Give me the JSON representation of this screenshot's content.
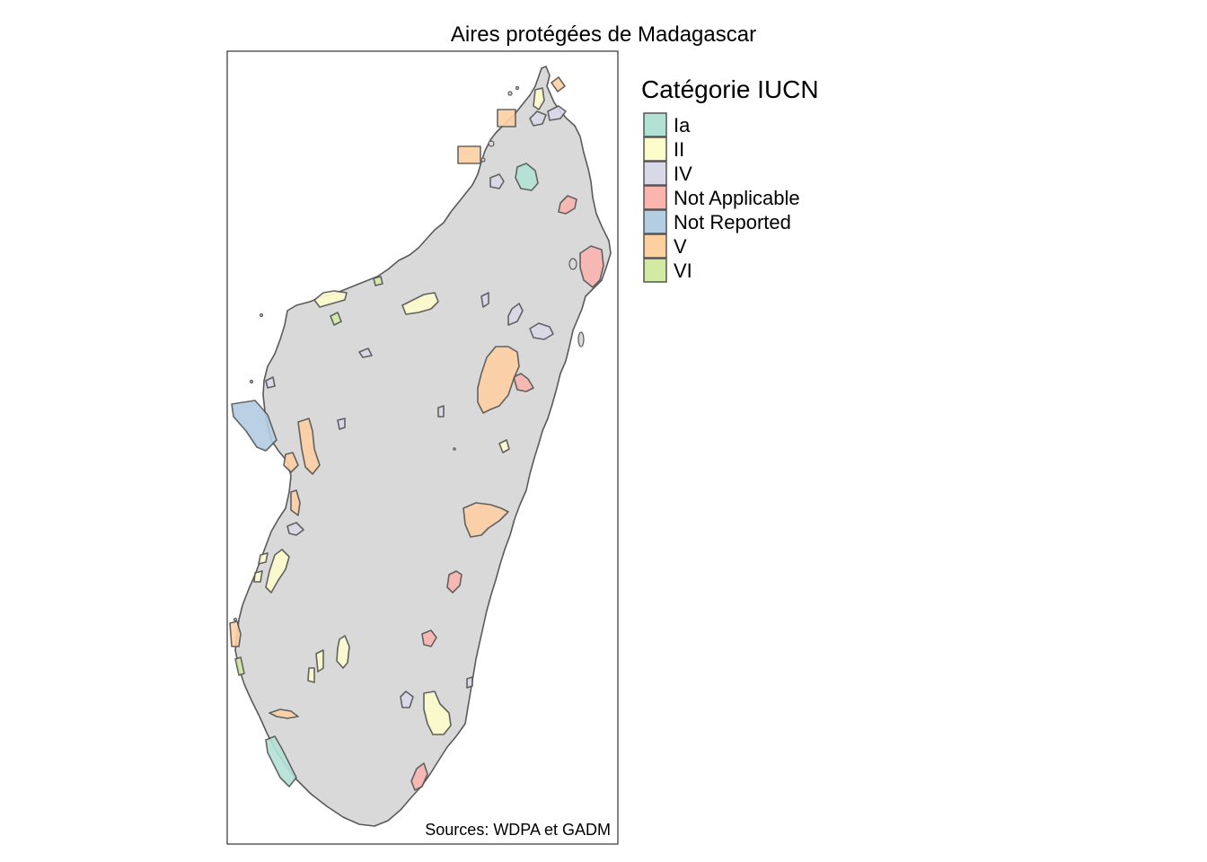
{
  "map": {
    "title": "Aires protégées de Madagascar",
    "credits": "Sources: WDPA et GADM",
    "land_color": "#d9d9d9",
    "border_color": "#5a5a5a"
  },
  "legend": {
    "title": "Catégorie IUCN",
    "items": [
      {
        "key": "Ia",
        "label": "Ia",
        "color": "#b3e2d5"
      },
      {
        "key": "II",
        "label": "II",
        "color": "#fdfdcc"
      },
      {
        "key": "IV",
        "label": "IV",
        "color": "#d9d8e8"
      },
      {
        "key": "NA",
        "label": "Not Applicable",
        "color": "#fbb4ae"
      },
      {
        "key": "NR",
        "label": "Not Reported",
        "color": "#b3cde3"
      },
      {
        "key": "V",
        "label": "V",
        "color": "#fdd0a2"
      },
      {
        "key": "VI",
        "label": "VI",
        "color": "#d3eaa4"
      }
    ]
  }
}
